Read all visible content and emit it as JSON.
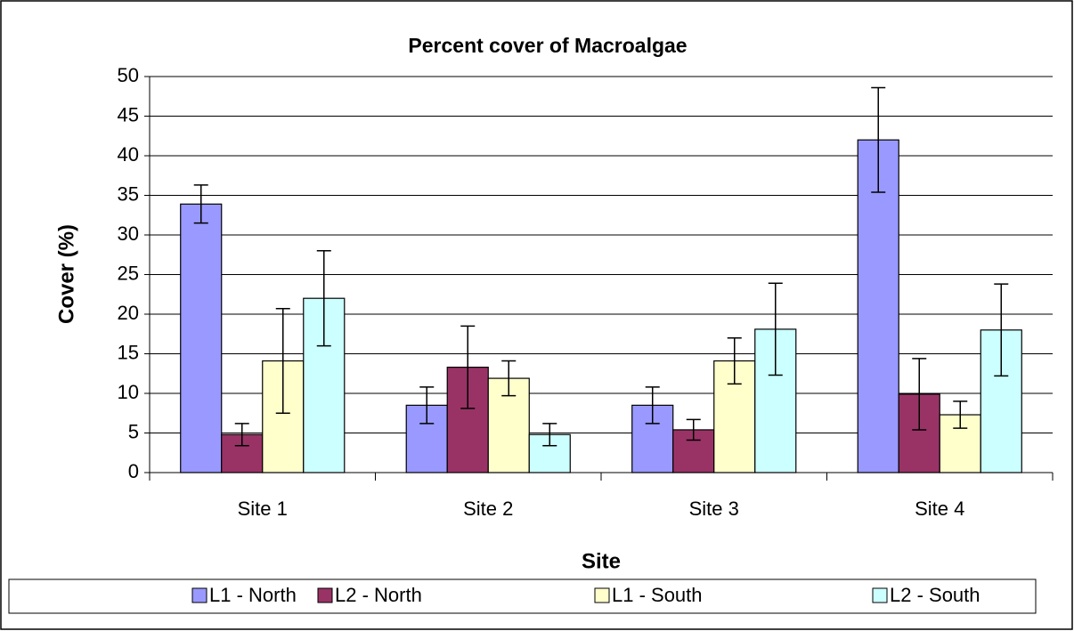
{
  "chart_data": {
    "type": "bar",
    "title": "Percent cover of Macroalgae",
    "x_label": "Site",
    "y_label": "Cover (%)",
    "categories": [
      "Site 1",
      "Site 2",
      "Site 3",
      "Site 4"
    ],
    "series": [
      {
        "name": "L1 - North",
        "color": "#9999ff",
        "values": [
          33.9,
          8.5,
          8.5,
          42
        ],
        "errors": [
          2.4,
          2.3,
          2.3,
          6.6
        ]
      },
      {
        "name": "L2 - North",
        "color": "#993366",
        "values": [
          4.8,
          13.3,
          5.4,
          9.9
        ],
        "errors": [
          1.4,
          5.2,
          1.3,
          4.5
        ]
      },
      {
        "name": "L1 - South",
        "color": "#ffffcc",
        "values": [
          14.1,
          11.9,
          14.1,
          7.3
        ],
        "errors": [
          6.6,
          2.2,
          2.9,
          1.7
        ]
      },
      {
        "name": "L2 - South",
        "color": "#ccffff",
        "values": [
          22,
          4.8,
          18.1,
          18
        ],
        "errors": [
          6,
          1.4,
          5.8,
          5.8
        ]
      }
    ],
    "ylim": [
      0,
      50
    ],
    "yticks": [
      0,
      5,
      10,
      15,
      20,
      25,
      30,
      35,
      40,
      45,
      50
    ],
    "grid": true,
    "legend": "bottom"
  }
}
